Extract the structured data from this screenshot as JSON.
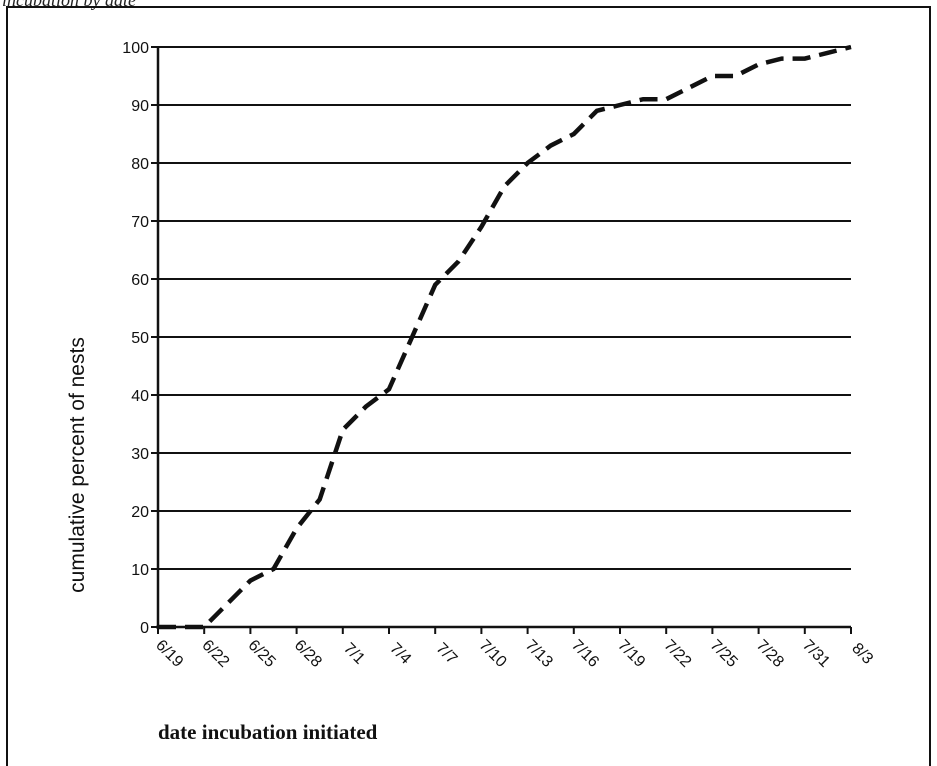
{
  "header_fragment": "incubation by date",
  "chart_data": {
    "type": "line",
    "title": "",
    "xlabel": "date incubation initiated",
    "ylabel": "cumulative percent of nests",
    "ylim": [
      0,
      100
    ],
    "yticks": [
      0,
      10,
      20,
      30,
      40,
      50,
      60,
      70,
      80,
      90,
      100
    ],
    "grid": true,
    "line_style": "dashed",
    "line_color": "#111111",
    "xtick_labels": [
      "6/19",
      "6/22",
      "6/25",
      "6/28",
      "7/1",
      "7/4",
      "7/7",
      "7/10",
      "7/13",
      "7/16",
      "7/19",
      "7/22",
      "7/25",
      "7/28",
      "7/31",
      "8/3"
    ],
    "x": [
      0,
      1,
      1.5,
      2,
      2.5,
      3,
      3.5,
      4,
      4.5,
      5,
      5.5,
      6,
      6.5,
      7,
      7.5,
      8,
      8.5,
      9,
      9.5,
      10,
      10.5,
      11,
      11.5,
      12,
      12.5,
      13,
      13.5,
      14,
      14.5,
      15
    ],
    "y": [
      0,
      0,
      4,
      8,
      10,
      17,
      22,
      34,
      38,
      41,
      50,
      59,
      63,
      69,
      76,
      80,
      83,
      85,
      89,
      90,
      91,
      91,
      93,
      95,
      95,
      97,
      98,
      98,
      99,
      100
    ]
  }
}
